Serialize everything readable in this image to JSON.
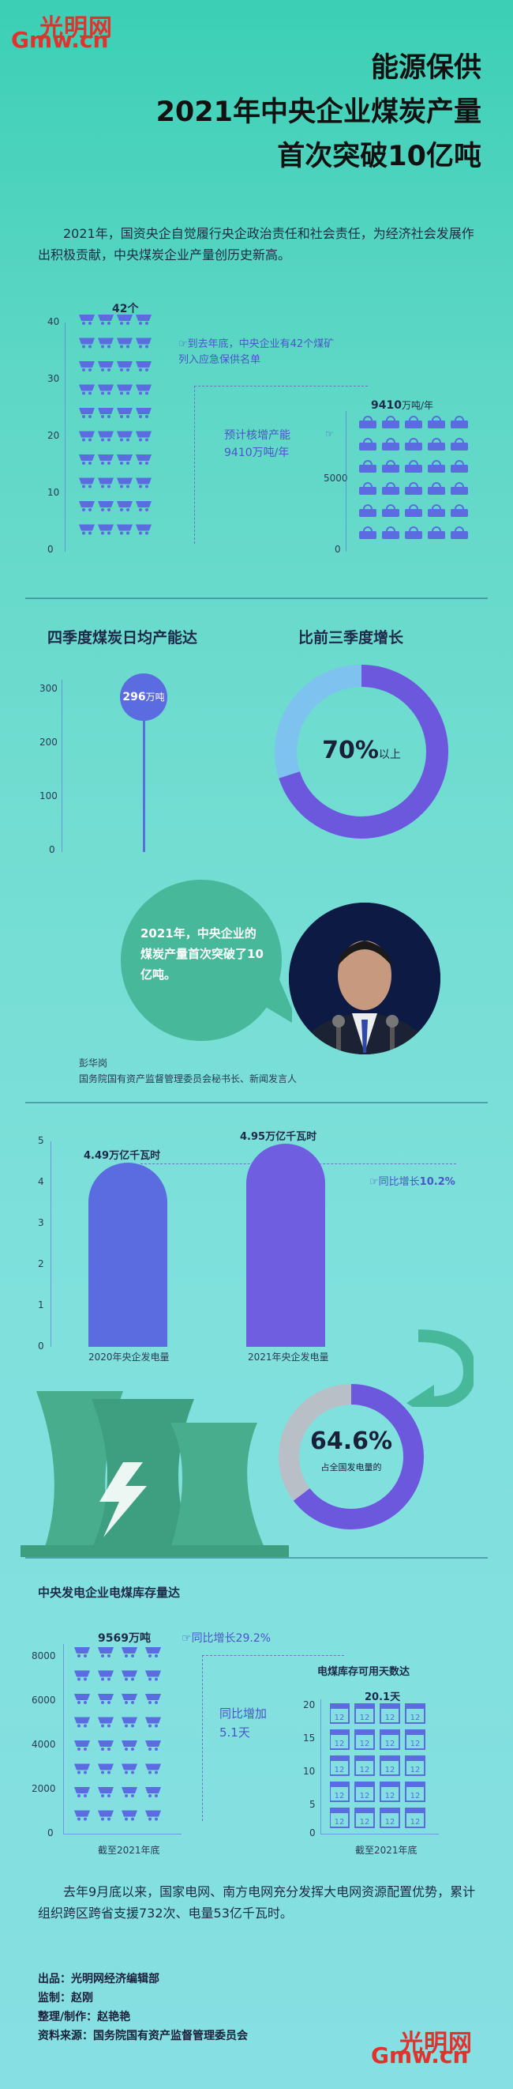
{
  "logo": {
    "text_cn": "光明网",
    "text_en": "Gmw.cn"
  },
  "title": {
    "line1": "能源保供",
    "line2": "2021年中央企业煤炭产量",
    "line3": "首次突破10亿吨"
  },
  "intro": "2021年，国资央企自觉履行央企政治责任和社会责任，为经济社会发展作出积极贡献，中央煤炭企业产量创历史新高。",
  "section1": {
    "left_axis": [
      "40",
      "30",
      "20",
      "10",
      "0"
    ],
    "left_value": "42个",
    "left_note": "到去年底，中央企业有42个煤矿列入应急保供名单",
    "right_axis": [
      "5000",
      "0"
    ],
    "right_value_num": "9410",
    "right_value_unit": "万吨/年",
    "right_note_line1": "预计核增产能",
    "right_note_line2": "9410万吨/年"
  },
  "section2": {
    "left_title": "四季度煤炭日均产能达",
    "left_axis": [
      "300",
      "200",
      "100",
      "0"
    ],
    "left_value_num": "296",
    "left_value_unit": "万吨",
    "left_value": 296,
    "right_title": "比前三季度增长",
    "right_value": "70%",
    "right_suffix": "以上",
    "right_fraction": 0.7,
    "quote": "2021年，中央企业的煤炭产量首次突破了10亿吨。",
    "speaker_name": "彭华岗",
    "speaker_title": "国务院国有资产监督管理委员会秘书长、新闻发言人"
  },
  "section3": {
    "axis": [
      "5",
      "4",
      "3",
      "2",
      "1",
      "0"
    ],
    "bars": [
      {
        "label": "2020年央企发电量",
        "value_text": "4.49万亿千瓦时",
        "value": 4.49
      },
      {
        "label": "2021年央企发电量",
        "value_text": "4.95万亿千瓦时",
        "value": 4.95
      }
    ],
    "growth_prefix": "同比增长",
    "growth_value": "10.2%",
    "share_value": "64.6%",
    "share_label": "占全国发电量的",
    "share_fraction": 0.646
  },
  "section4": {
    "title": "中央发电企业电煤库存量达",
    "left_axis": [
      "8000",
      "6000",
      "4000",
      "2000",
      "0"
    ],
    "left_value": "9569万吨",
    "left_growth": "同比增长29.2%",
    "left_xlabel": "截至2021年底",
    "mid_note_line1": "同比增加",
    "mid_note_line2": "5.1天",
    "right_title": "电煤库存可用天数达",
    "right_axis": [
      "20",
      "15",
      "10",
      "5",
      "0"
    ],
    "right_value": "20.1天",
    "right_xlabel": "截至2021年底",
    "calendar_text": "12"
  },
  "outro": "去年9月底以来，国家电网、南方电网充分发挥大电网资源配置优势，累计组织跨区跨省支援732次、电量53亿千瓦时。",
  "credits": [
    "出品：光明网经济编辑部",
    "监制：赵刚",
    "整理/制作：赵艳艳",
    "资料来源：国务院国有资产监督管理委员会"
  ],
  "colors": {
    "accent": "#5b6be0",
    "teal": "#3cc6a8",
    "red": "#e2322d"
  }
}
